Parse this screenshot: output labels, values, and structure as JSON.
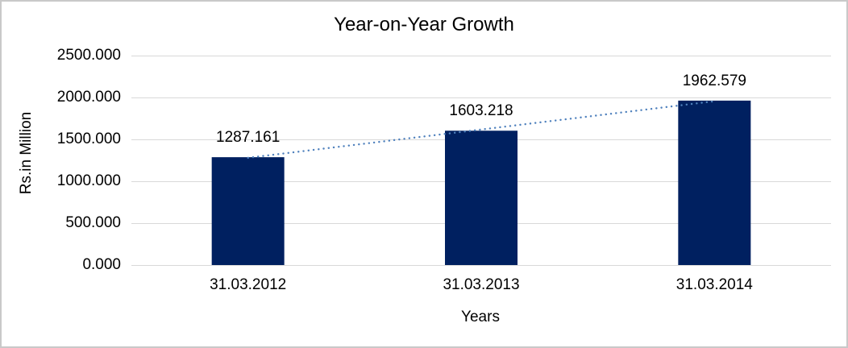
{
  "chart_data": {
    "type": "bar",
    "title": "Year-on-Year Growth",
    "xlabel": "Years",
    "ylabel": "Rs.in Million",
    "categories": [
      "31.03.2012",
      "31.03.2013",
      "31.03.2014"
    ],
    "values": [
      1287.161,
      1603.218,
      1962.579
    ],
    "data_labels": [
      "1287.161",
      "1603.218",
      "1962.579"
    ],
    "yticks": [
      0,
      500,
      1000,
      1500,
      2000,
      2500
    ],
    "ytick_labels": [
      "0.000",
      "500.000",
      "1000.000",
      "1500.000",
      "2000.000",
      "2500.000"
    ],
    "ylim": [
      0,
      2500
    ],
    "grid": true,
    "legend": false,
    "trendline": {
      "type": "linear",
      "style": "dotted"
    },
    "colors": {
      "bar": "#002060",
      "trendline": "#4f81bd",
      "gridline": "#d9d9d9",
      "text": "#000000",
      "border": "#c9c9c9",
      "background": "#ffffff"
    }
  }
}
